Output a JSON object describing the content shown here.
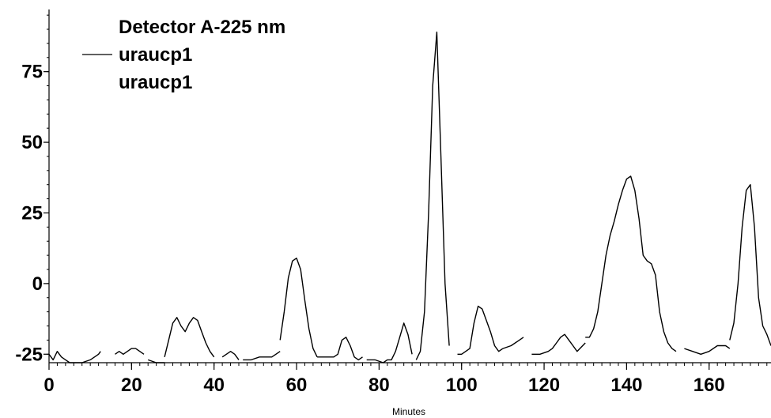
{
  "chart_data": {
    "type": "line",
    "title": "",
    "xlabel": "Minutes",
    "ylabel": "",
    "xlim": [
      0,
      175
    ],
    "ylim": [
      -28,
      97
    ],
    "x_ticks": [
      0,
      20,
      40,
      60,
      80,
      100,
      120,
      140,
      160
    ],
    "y_ticks": [
      -25,
      0,
      25,
      50,
      75
    ],
    "x_minor_step": 2,
    "y_minor_step": 5,
    "grid": false,
    "legend": {
      "placement": "top-left",
      "header": "Detector A-225 nm",
      "entries": [
        "uraucp1",
        "uraucp1"
      ]
    },
    "series": [
      {
        "name": "uraucp1",
        "color": "#000000",
        "segments": [
          {
            "x": [
              0,
              1,
              2,
              3,
              4,
              5,
              6,
              8,
              10,
              12,
              12.5
            ],
            "y": [
              -25,
              -27,
              -24,
              -26,
              -27,
              -28,
              -28,
              -28,
              -27,
              -25,
              -24
            ]
          },
          {
            "x": [
              16,
              17,
              18,
              19,
              20,
              21,
              22,
              23
            ],
            "y": [
              -25,
              -24,
              -25,
              -24,
              -23,
              -23,
              -24,
              -25
            ]
          },
          {
            "x": [
              24,
              26,
              28
            ],
            "y": [
              -27,
              -28,
              -28
            ]
          },
          {
            "x": [
              28,
              29,
              30,
              31,
              32,
              33,
              34,
              35,
              36,
              37,
              38,
              39,
              40
            ],
            "y": [
              -26,
              -20,
              -14,
              -12,
              -15,
              -17,
              -14,
              -12,
              -13,
              -17,
              -21,
              -24,
              -26
            ]
          },
          {
            "x": [
              42,
              43,
              44,
              45,
              46
            ],
            "y": [
              -26,
              -25,
              -24,
              -25,
              -27
            ]
          },
          {
            "x": [
              47,
              49,
              51,
              53,
              54,
              55,
              56
            ],
            "y": [
              -27,
              -27,
              -26,
              -26,
              -26,
              -25,
              -24
            ]
          },
          {
            "x": [
              56,
              57,
              58,
              59,
              60,
              61,
              62,
              63,
              64,
              65
            ],
            "y": [
              -20,
              -10,
              2,
              8,
              9,
              5,
              -6,
              -16,
              -23,
              -26
            ]
          },
          {
            "x": [
              65,
              67,
              69,
              70,
              71,
              72,
              73,
              74,
              75,
              76
            ],
            "y": [
              -26,
              -26,
              -26,
              -25,
              -20,
              -19,
              -22,
              -26,
              -27,
              -26
            ]
          },
          {
            "x": [
              77,
              79,
              81,
              82,
              83,
              84,
              85,
              86,
              87,
              88
            ],
            "y": [
              -27,
              -27,
              -28,
              -27,
              -27,
              -24,
              -19,
              -14,
              -18,
              -25
            ]
          },
          {
            "x": [
              89,
              90,
              91,
              92,
              93,
              94,
              95,
              96,
              97
            ],
            "y": [
              -27,
              -24,
              -10,
              25,
              70,
              89,
              45,
              0,
              -22
            ]
          },
          {
            "x": [
              99,
              100,
              101,
              102,
              103,
              104,
              105,
              106,
              107,
              108,
              109,
              110
            ],
            "y": [
              -25,
              -25,
              -24,
              -23,
              -14,
              -8,
              -9,
              -13,
              -17,
              -22,
              -24,
              -23
            ]
          },
          {
            "x": [
              110,
              112,
              114,
              115
            ],
            "y": [
              -23,
              -22,
              -20,
              -19
            ]
          },
          {
            "x": [
              117,
              119,
              121,
              122,
              123,
              124,
              125,
              126,
              127,
              128,
              130
            ],
            "y": [
              -25,
              -25,
              -24,
              -23,
              -21,
              -19,
              -18,
              -20,
              -22,
              -24,
              -21
            ]
          },
          {
            "x": [
              130,
              131,
              132,
              133,
              134,
              135,
              136,
              137,
              138,
              139,
              140,
              141,
              142,
              143,
              144,
              145,
              146,
              147,
              148,
              149,
              150,
              151,
              152
            ],
            "y": [
              -19,
              -19,
              -16,
              -10,
              0,
              10,
              17,
              22,
              28,
              33,
              37,
              38,
              33,
              23,
              10,
              8,
              7,
              3,
              -10,
              -17,
              -21,
              -23,
              -24
            ]
          },
          {
            "x": [
              154,
              156,
              158,
              160,
              162,
              164,
              165
            ],
            "y": [
              -23,
              -24,
              -25,
              -24,
              -22,
              -22,
              -23
            ]
          },
          {
            "x": [
              165,
              166,
              167,
              168,
              169,
              170,
              171,
              172,
              173,
              174,
              175
            ],
            "y": [
              -20,
              -14,
              0,
              20,
              33,
              35,
              20,
              -5,
              -15,
              -18,
              -22
            ]
          }
        ]
      }
    ]
  }
}
